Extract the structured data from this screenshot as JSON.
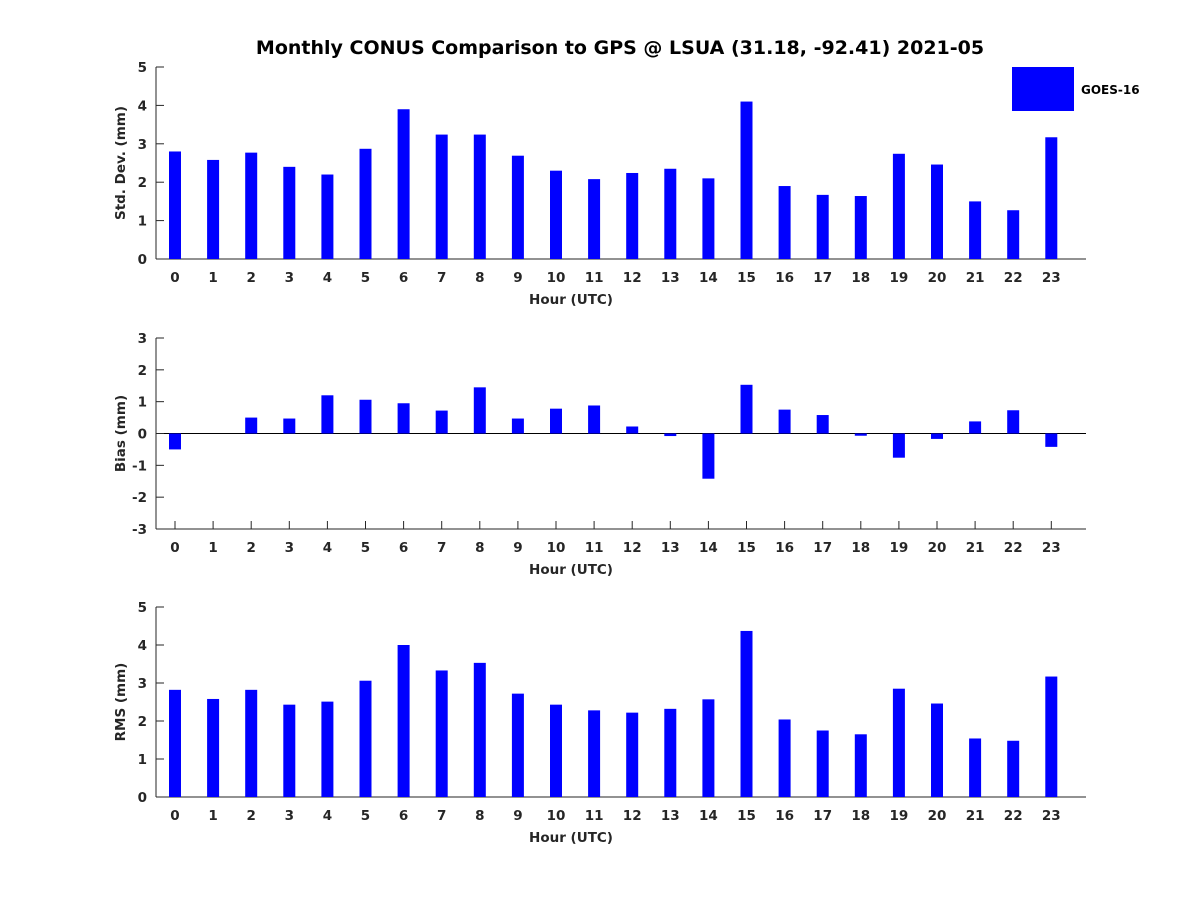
{
  "figure": {
    "title": "Monthly CONUS Comparison to GPS @ LSUA (31.18, -92.41) 2021-05",
    "legend_label": "GOES-16",
    "bar_color": "#0000ff"
  },
  "chart_data": [
    {
      "type": "bar",
      "xlabel": "Hour (UTC)",
      "ylabel": "Std. Dev. (mm)",
      "categories": [
        "0",
        "1",
        "2",
        "3",
        "4",
        "5",
        "6",
        "7",
        "8",
        "9",
        "10",
        "11",
        "12",
        "13",
        "14",
        "15",
        "16",
        "17",
        "18",
        "19",
        "20",
        "21",
        "22",
        "23"
      ],
      "series": [
        {
          "name": "GOES-16",
          "values": [
            2.8,
            2.58,
            2.77,
            2.4,
            2.2,
            2.87,
            3.9,
            3.24,
            3.24,
            2.69,
            2.3,
            2.08,
            2.24,
            2.35,
            2.1,
            4.1,
            1.9,
            1.67,
            1.64,
            2.74,
            2.46,
            1.5,
            1.27,
            3.17
          ]
        }
      ],
      "ylim": [
        0,
        5
      ],
      "yticks": [
        0,
        1,
        2,
        3,
        4,
        5
      ],
      "grid": false,
      "legend": "top-right"
    },
    {
      "type": "bar",
      "xlabel": "Hour (UTC)",
      "ylabel": "Bias (mm)",
      "categories": [
        "0",
        "1",
        "2",
        "3",
        "4",
        "5",
        "6",
        "7",
        "8",
        "9",
        "10",
        "11",
        "12",
        "13",
        "14",
        "15",
        "16",
        "17",
        "18",
        "19",
        "20",
        "21",
        "22",
        "23"
      ],
      "series": [
        {
          "name": "GOES-16",
          "values": [
            -0.5,
            0.0,
            0.5,
            0.47,
            1.2,
            1.06,
            0.95,
            0.72,
            1.45,
            0.47,
            0.78,
            0.88,
            0.22,
            -0.08,
            -1.42,
            1.53,
            0.75,
            0.58,
            -0.07,
            -0.76,
            -0.17,
            0.38,
            0.73,
            -0.42
          ]
        }
      ],
      "ylim": [
        -3,
        3
      ],
      "yticks": [
        -3,
        -2,
        -1,
        0,
        1,
        2,
        3
      ],
      "grid": false
    },
    {
      "type": "bar",
      "xlabel": "Hour (UTC)",
      "ylabel": "RMS (mm)",
      "categories": [
        "0",
        "1",
        "2",
        "3",
        "4",
        "5",
        "6",
        "7",
        "8",
        "9",
        "10",
        "11",
        "12",
        "13",
        "14",
        "15",
        "16",
        "17",
        "18",
        "19",
        "20",
        "21",
        "22",
        "23"
      ],
      "series": [
        {
          "name": "GOES-16",
          "values": [
            2.82,
            2.58,
            2.82,
            2.43,
            2.51,
            3.06,
            4.0,
            3.33,
            3.53,
            2.72,
            2.43,
            2.28,
            2.22,
            2.32,
            2.57,
            4.37,
            2.04,
            1.75,
            1.65,
            2.85,
            2.46,
            1.54,
            1.48,
            3.17
          ]
        }
      ],
      "ylim": [
        0,
        5
      ],
      "yticks": [
        0,
        1,
        2,
        3,
        4,
        5
      ],
      "grid": false
    }
  ]
}
